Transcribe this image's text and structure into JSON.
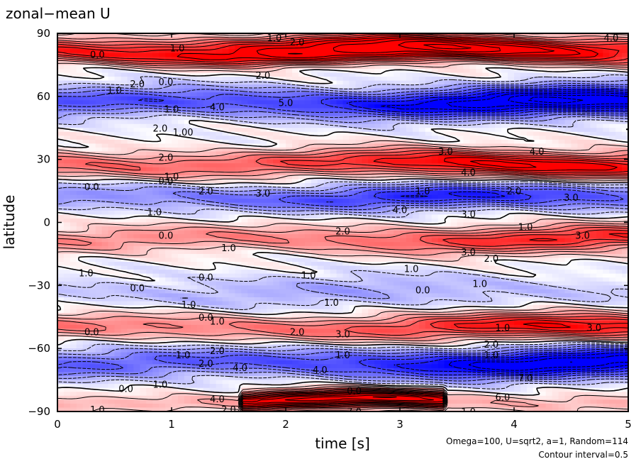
{
  "chart_data": {
    "type": "heatmap",
    "title": "zonal−mean U",
    "xlabel": "time [s]",
    "ylabel": "latitude",
    "xlim": [
      0,
      5
    ],
    "ylim": [
      -90,
      90
    ],
    "x_ticks": [
      "0",
      "1",
      "2",
      "3",
      "4",
      "5"
    ],
    "y_ticks": [
      "90",
      "60",
      "30",
      "0",
      "−30",
      "−60",
      "−90"
    ],
    "x_tick_values": [
      0,
      1,
      2,
      3,
      4,
      5
    ],
    "y_tick_values": [
      90,
      60,
      30,
      0,
      -30,
      -60,
      -90
    ],
    "annotations": [
      "Omega=100, U=sqrt2, a=1, Random=114",
      "Contour interval=0.5"
    ],
    "colors": {
      "positive": "#ff0000",
      "negative": "#0000ff",
      "zero": "#ffffff"
    },
    "contour_interval": 0.5,
    "bands": [
      {
        "lat": 84,
        "amp": 4.5,
        "width": 5,
        "t_start": 0,
        "t_end": 5,
        "t_peak": 3.3
      },
      {
        "lat": 79,
        "amp": 3.0,
        "width": 4,
        "t_start": 0,
        "t_end": 5,
        "t_peak": 2.2
      },
      {
        "lat": 57,
        "amp": -5.0,
        "width": 7,
        "t_start": 0,
        "t_end": 5,
        "t_peak": 4.5
      },
      {
        "lat": 28,
        "amp": 4.0,
        "width": 6,
        "t_start": 0,
        "t_end": 5,
        "t_peak": 4.0
      },
      {
        "lat": 12,
        "amp": -3.0,
        "width": 6,
        "t_start": 0,
        "t_end": 5,
        "t_peak": 3.5
      },
      {
        "lat": -8,
        "amp": 3.0,
        "width": 6,
        "t_start": 0,
        "t_end": 5,
        "t_peak": 4.5
      },
      {
        "lat": -33,
        "amp": -1.0,
        "width": 8,
        "t_start": 0,
        "t_end": 5,
        "t_peak": 2.5
      },
      {
        "lat": -50,
        "amp": 3.5,
        "width": 6,
        "t_start": 0,
        "t_end": 5,
        "t_peak": 4.5
      },
      {
        "lat": -67,
        "amp": -4.5,
        "width": 7,
        "t_start": 0,
        "t_end": 5,
        "t_peak": 4.5
      },
      {
        "lat": -85,
        "amp": 6.0,
        "width": 4,
        "t_start": 1.6,
        "t_end": 3.4,
        "t_peak": 2.6
      }
    ],
    "contour_labels": [
      {
        "t": 0.35,
        "lat": 80,
        "text": "0.0"
      },
      {
        "t": 1.05,
        "lat": 83,
        "text": "1.0"
      },
      {
        "t": 1.9,
        "lat": 88,
        "text": "1.0"
      },
      {
        "t": 2.1,
        "lat": 86,
        "text": "2.0"
      },
      {
        "t": 4.85,
        "lat": 88,
        "text": "4.0"
      },
      {
        "t": 1.8,
        "lat": 70,
        "text": "2.0"
      },
      {
        "t": 0.5,
        "lat": 63,
        "text": "1.0"
      },
      {
        "t": 0.7,
        "lat": 66,
        "text": "2.0"
      },
      {
        "t": 0.95,
        "lat": 67,
        "text": "0.0"
      },
      {
        "t": 1.0,
        "lat": 54,
        "text": "1.0"
      },
      {
        "t": 1.4,
        "lat": 55,
        "text": "4.0"
      },
      {
        "t": 2.0,
        "lat": 57,
        "text": "5.0"
      },
      {
        "t": 0.9,
        "lat": 45,
        "text": "2.0"
      },
      {
        "t": 1.1,
        "lat": 43,
        "text": "1.00"
      },
      {
        "t": 3.4,
        "lat": 34,
        "text": "3.0"
      },
      {
        "t": 4.2,
        "lat": 34,
        "text": "4.0"
      },
      {
        "t": 0.95,
        "lat": 31,
        "text": "2.0"
      },
      {
        "t": 1.0,
        "lat": 22,
        "text": "1.0"
      },
      {
        "t": 0.95,
        "lat": 20,
        "text": "0.0"
      },
      {
        "t": 3.6,
        "lat": 24,
        "text": "4.0"
      },
      {
        "t": 0.3,
        "lat": 17,
        "text": "0.0"
      },
      {
        "t": 1.3,
        "lat": 15,
        "text": "2.0"
      },
      {
        "t": 1.8,
        "lat": 14,
        "text": "3.0"
      },
      {
        "t": 3.2,
        "lat": 15,
        "text": "1.0"
      },
      {
        "t": 4.0,
        "lat": 15,
        "text": "2.0"
      },
      {
        "t": 4.5,
        "lat": 12,
        "text": "3.0"
      },
      {
        "t": 3.0,
        "lat": 6,
        "text": "4.0"
      },
      {
        "t": 0.85,
        "lat": 5,
        "text": "1.0"
      },
      {
        "t": 3.6,
        "lat": 4,
        "text": "3.0"
      },
      {
        "t": 4.1,
        "lat": -2,
        "text": "1.0"
      },
      {
        "t": 0.95,
        "lat": -6,
        "text": "0.0"
      },
      {
        "t": 2.5,
        "lat": -4,
        "text": "2.0"
      },
      {
        "t": 4.6,
        "lat": -6,
        "text": "3.0"
      },
      {
        "t": 1.5,
        "lat": -12,
        "text": "1.0"
      },
      {
        "t": 3.6,
        "lat": -14,
        "text": "3.0"
      },
      {
        "t": 3.8,
        "lat": -17,
        "text": "2.0"
      },
      {
        "t": 0.25,
        "lat": -24,
        "text": "1.0"
      },
      {
        "t": 1.3,
        "lat": -26,
        "text": "0.0"
      },
      {
        "t": 2.2,
        "lat": -25,
        "text": "1.0"
      },
      {
        "t": 3.1,
        "lat": -22,
        "text": "1.0"
      },
      {
        "t": 3.7,
        "lat": -29,
        "text": "1.0"
      },
      {
        "t": 0.7,
        "lat": -31,
        "text": "0.0"
      },
      {
        "t": 3.2,
        "lat": -32,
        "text": "0.0"
      },
      {
        "t": 1.15,
        "lat": -39,
        "text": "1.0"
      },
      {
        "t": 2.4,
        "lat": -38,
        "text": "1.0"
      },
      {
        "t": 1.4,
        "lat": -47,
        "text": "1.0"
      },
      {
        "t": 1.3,
        "lat": -45,
        "text": "0.0"
      },
      {
        "t": 0.3,
        "lat": -52,
        "text": "0.0"
      },
      {
        "t": 2.1,
        "lat": -52,
        "text": "2.0"
      },
      {
        "t": 2.5,
        "lat": -53,
        "text": "3.0"
      },
      {
        "t": 3.9,
        "lat": -50,
        "text": "1.0"
      },
      {
        "t": 4.7,
        "lat": -50,
        "text": "3.0"
      },
      {
        "t": 3.8,
        "lat": -58,
        "text": "2.0"
      },
      {
        "t": 1.1,
        "lat": -63,
        "text": "1.0"
      },
      {
        "t": 1.4,
        "lat": -61,
        "text": "2.0"
      },
      {
        "t": 2.5,
        "lat": -63,
        "text": "1.0"
      },
      {
        "t": 3.8,
        "lat": -63,
        "text": "1.0"
      },
      {
        "t": 1.3,
        "lat": -67,
        "text": "2.0"
      },
      {
        "t": 1.6,
        "lat": -69,
        "text": "4.0"
      },
      {
        "t": 2.3,
        "lat": -70,
        "text": "4.0"
      },
      {
        "t": 4.1,
        "lat": -74,
        "text": "7.0"
      },
      {
        "t": 0.9,
        "lat": -77,
        "text": "1.0"
      },
      {
        "t": 0.6,
        "lat": -79,
        "text": "0.0"
      },
      {
        "t": 1.4,
        "lat": -84,
        "text": "4.0"
      },
      {
        "t": 2.6,
        "lat": -80,
        "text": "0.0"
      },
      {
        "t": 3.9,
        "lat": -83,
        "text": "6.0"
      },
      {
        "t": 0.35,
        "lat": -89,
        "text": "1.0"
      },
      {
        "t": 1.5,
        "lat": -89,
        "text": "2.0"
      },
      {
        "t": 2.6,
        "lat": -90,
        "text": "7.0"
      },
      {
        "t": 3.6,
        "lat": -90,
        "text": "1.0"
      }
    ]
  }
}
